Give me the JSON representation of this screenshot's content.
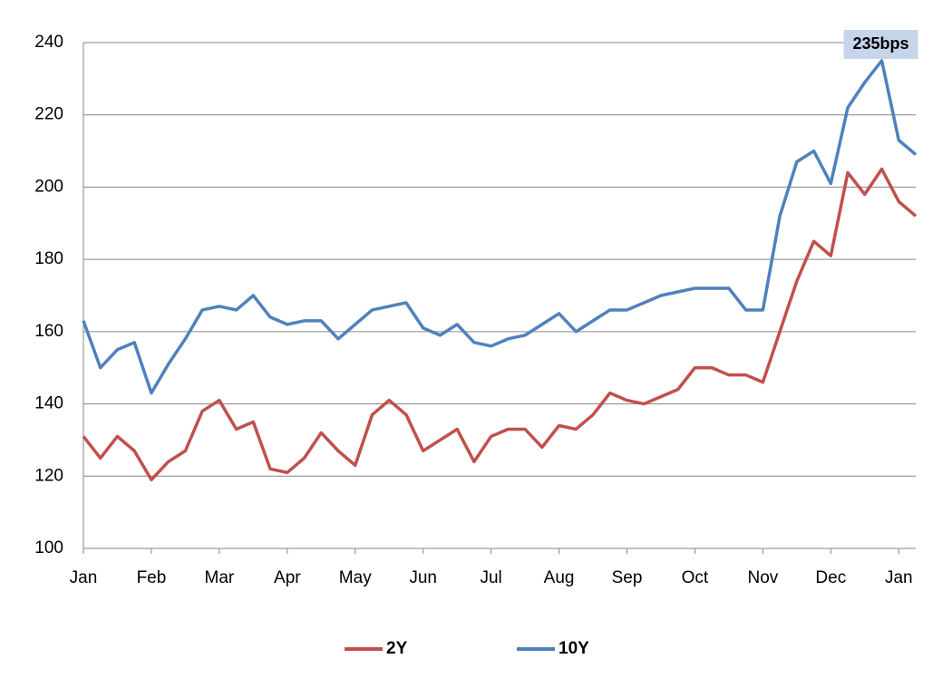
{
  "chart_data": {
    "type": "line",
    "categories": [
      "Jan",
      null,
      null,
      null,
      "Feb",
      null,
      null,
      null,
      "Mar",
      null,
      null,
      null,
      "Apr",
      null,
      null,
      null,
      "May",
      null,
      null,
      null,
      "Jun",
      null,
      null,
      null,
      "Jul",
      null,
      null,
      null,
      "Aug",
      null,
      null,
      null,
      "Sep",
      null,
      null,
      null,
      "Oct",
      null,
      null,
      null,
      "Nov",
      null,
      null,
      null,
      "Dec",
      null,
      null,
      null,
      "Jan",
      null
    ],
    "series": [
      {
        "name": "2Y",
        "color": "#c0504d",
        "values": [
          131,
          125,
          131,
          127,
          119,
          124,
          127,
          138,
          141,
          133,
          135,
          122,
          121,
          125,
          132,
          127,
          123,
          137,
          141,
          137,
          127,
          130,
          133,
          124,
          131,
          133,
          133,
          128,
          134,
          133,
          137,
          143,
          141,
          140,
          142,
          144,
          150,
          150,
          148,
          148,
          146,
          160,
          174,
          185,
          181,
          204,
          198,
          205,
          196,
          192
        ]
      },
      {
        "name": "10Y",
        "color": "#4f81bd",
        "values": [
          163,
          150,
          155,
          157,
          143,
          151,
          158,
          166,
          167,
          166,
          170,
          164,
          162,
          163,
          163,
          158,
          162,
          166,
          167,
          168,
          161,
          159,
          162,
          157,
          156,
          158,
          159,
          162,
          165,
          160,
          163,
          166,
          166,
          168,
          170,
          171,
          172,
          172,
          172,
          166,
          166,
          192,
          207,
          210,
          201,
          222,
          229,
          235,
          213,
          209
        ]
      }
    ],
    "ylim": [
      100,
      240
    ],
    "yticks": [
      100,
      120,
      140,
      160,
      180,
      200,
      220,
      240
    ],
    "grid": true,
    "annotation": "235bps",
    "legend": "bottom"
  }
}
